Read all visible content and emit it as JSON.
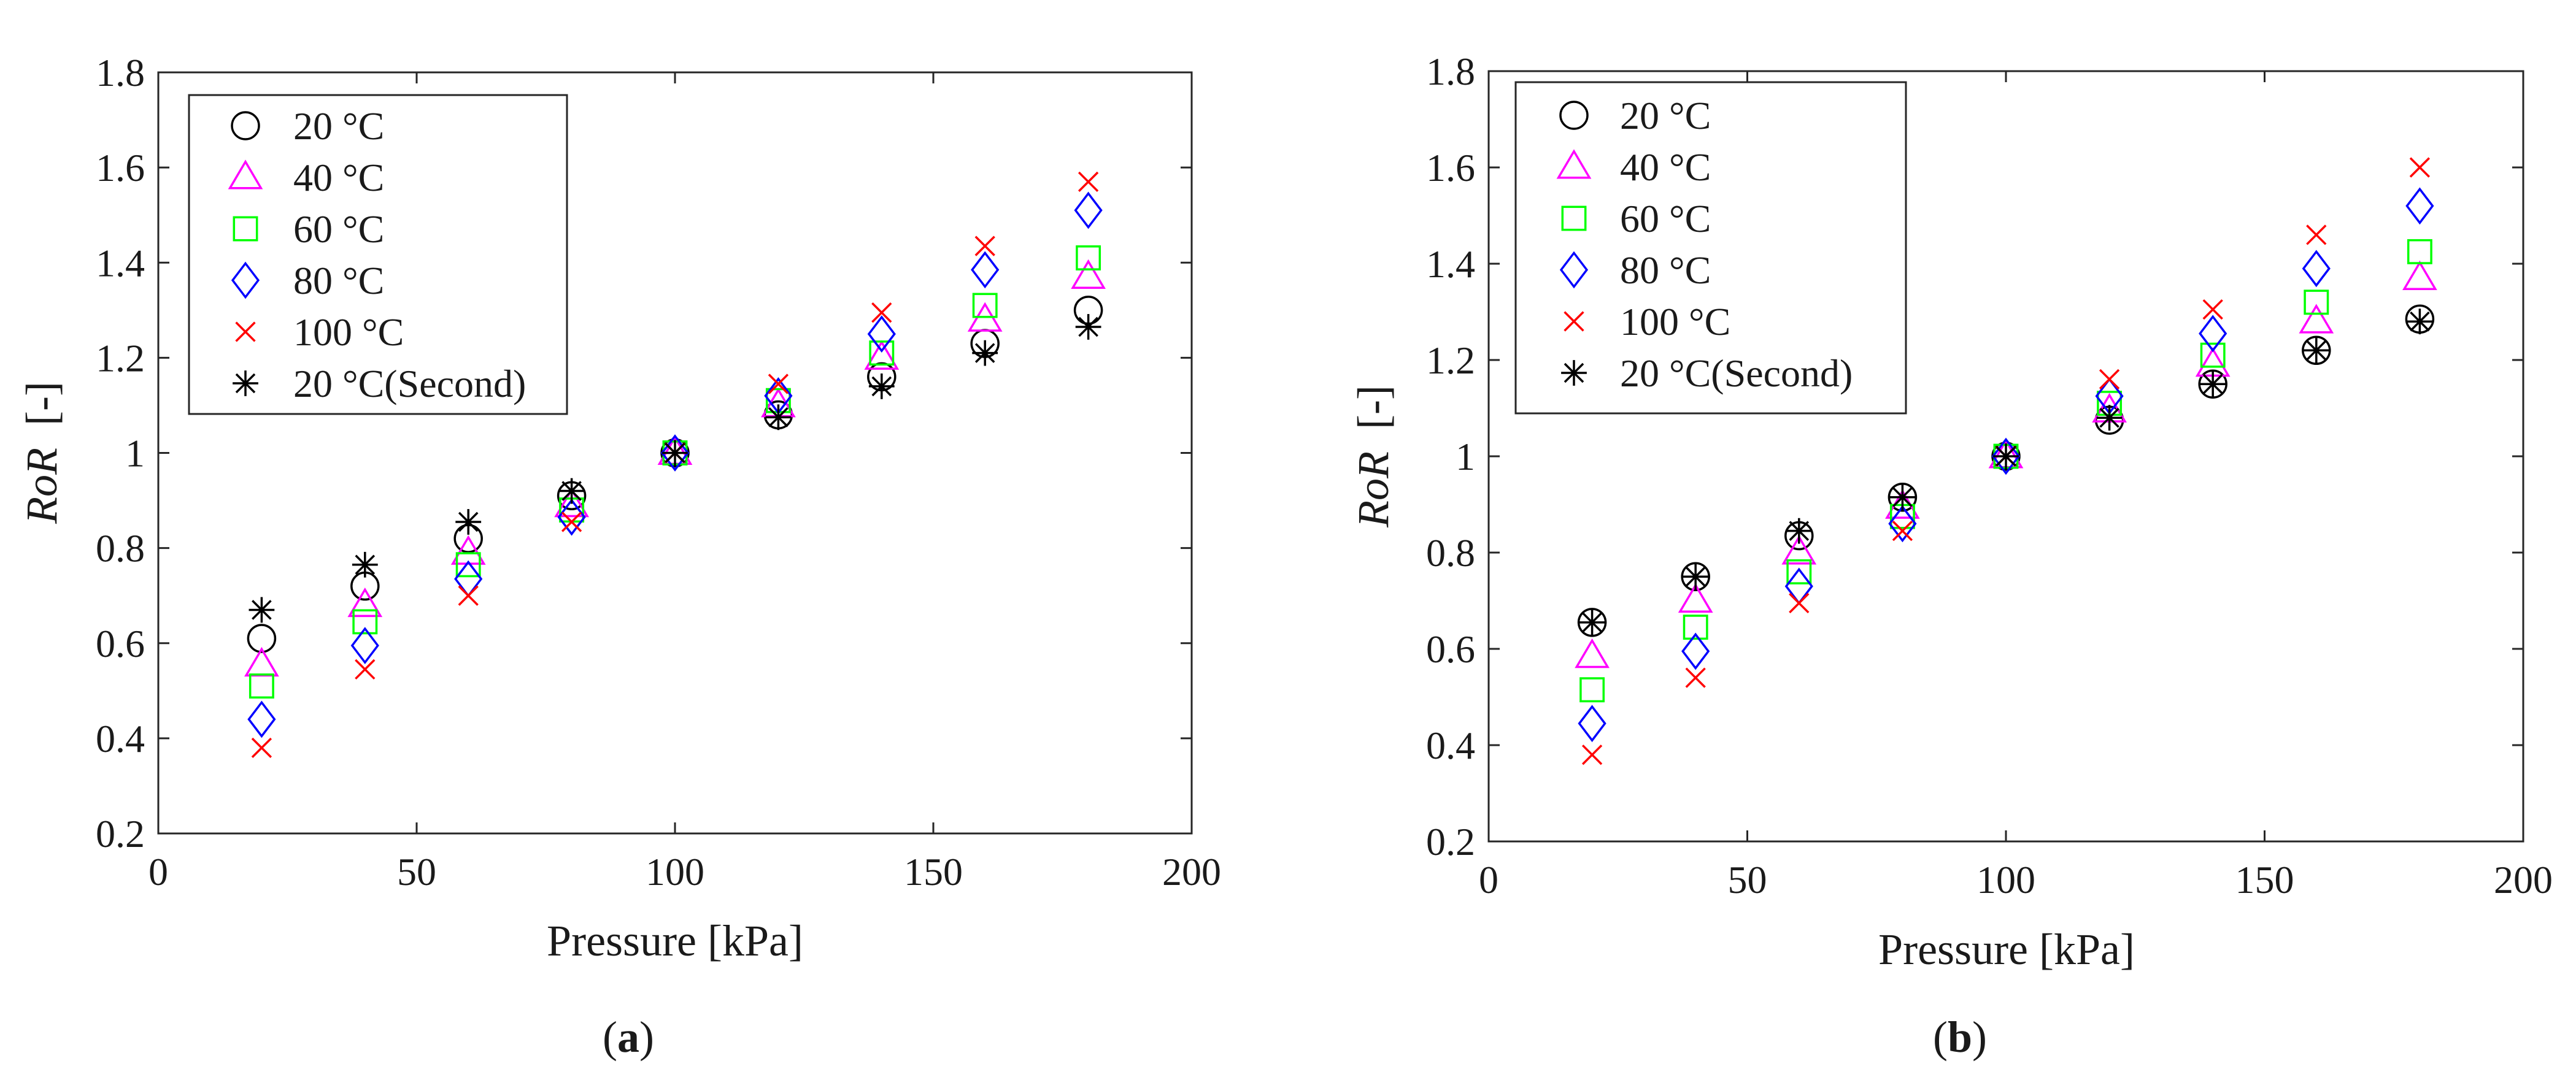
{
  "figure": {
    "panels": [
      {
        "panel_label": "a",
        "chart_data": {
          "type": "scatter",
          "xlabel": "Pressure [kPa]",
          "ylabel": "RoR",
          "ylabel_unit": "[-]",
          "xlim": [
            0,
            200
          ],
          "ylim": [
            0.2,
            1.8
          ],
          "xticks": [
            0,
            50,
            100,
            150,
            200
          ],
          "xtick_labels": [
            "0",
            "50",
            "100",
            "150",
            "200"
          ],
          "yticks": [
            0.2,
            0.4,
            0.6,
            0.8,
            1.0,
            1.2,
            1.4,
            1.6,
            1.8
          ],
          "ytick_labels": [
            "0.2",
            "0.4",
            "0.6",
            "0.8",
            "1",
            "1.2",
            "1.4",
            "1.6",
            "1.8"
          ],
          "grid": false,
          "legend_position": "top-left",
          "x": [
            20,
            40,
            60,
            80,
            100,
            120,
            140,
            160,
            180
          ],
          "series": [
            {
              "name": "20 °C",
              "marker": "circle",
              "color": "#000000",
              "values": [
                0.61,
                0.72,
                0.82,
                0.91,
                1.0,
                1.08,
                1.16,
                1.23,
                1.3
              ]
            },
            {
              "name": "40 °C",
              "marker": "triangle",
              "color": "#ff00ff",
              "values": [
                0.555,
                0.68,
                0.79,
                0.89,
                1.0,
                1.1,
                1.2,
                1.28,
                1.37
              ]
            },
            {
              "name": "60 °C",
              "marker": "square",
              "color": "#00ff00",
              "values": [
                0.51,
                0.645,
                0.765,
                0.88,
                1.0,
                1.11,
                1.21,
                1.31,
                1.41
              ]
            },
            {
              "name": "80 °C",
              "marker": "diamond",
              "color": "#0000ff",
              "values": [
                0.44,
                0.595,
                0.735,
                0.865,
                1.0,
                1.12,
                1.25,
                1.385,
                1.51
              ]
            },
            {
              "name": "100 °C",
              "marker": "x",
              "color": "#ff0000",
              "values": [
                0.38,
                0.545,
                0.7,
                0.855,
                1.0,
                1.145,
                1.295,
                1.435,
                1.57
              ]
            },
            {
              "name": "20 °C(Second)",
              "marker": "asterisk",
              "color": "#000000",
              "values": [
                0.67,
                0.765,
                0.855,
                0.92,
                1.0,
                1.075,
                1.14,
                1.21,
                1.265
              ]
            }
          ]
        }
      },
      {
        "panel_label": "b",
        "chart_data": {
          "type": "scatter",
          "xlabel": "Pressure [kPa]",
          "ylabel": "RoR",
          "ylabel_unit": "[-]",
          "xlim": [
            0,
            200
          ],
          "ylim": [
            0.2,
            1.8
          ],
          "xticks": [
            0,
            50,
            100,
            150,
            200
          ],
          "xtick_labels": [
            "0",
            "50",
            "100",
            "150",
            "200"
          ],
          "yticks": [
            0.2,
            0.4,
            0.6,
            0.8,
            1.0,
            1.2,
            1.4,
            1.6,
            1.8
          ],
          "ytick_labels": [
            "0.2",
            "0.4",
            "0.6",
            "0.8",
            "1",
            "1.2",
            "1.4",
            "1.6",
            "1.8"
          ],
          "grid": false,
          "legend_position": "top-left",
          "x": [
            20,
            40,
            60,
            80,
            100,
            120,
            140,
            160,
            180
          ],
          "series": [
            {
              "name": "20 °C",
              "marker": "circle",
              "color": "#000000",
              "values": [
                0.655,
                0.75,
                0.835,
                0.915,
                1.0,
                1.075,
                1.15,
                1.22,
                1.285
              ]
            },
            {
              "name": "40 °C",
              "marker": "triangle",
              "color": "#ff00ff",
              "values": [
                0.585,
                0.7,
                0.8,
                0.895,
                1.0,
                1.095,
                1.19,
                1.28,
                1.37
              ]
            },
            {
              "name": "60 °C",
              "marker": "square",
              "color": "#00ff00",
              "values": [
                0.515,
                0.645,
                0.76,
                0.875,
                1.0,
                1.11,
                1.21,
                1.32,
                1.425
              ]
            },
            {
              "name": "80 °C",
              "marker": "diamond",
              "color": "#0000ff",
              "values": [
                0.445,
                0.595,
                0.73,
                0.86,
                1.0,
                1.125,
                1.255,
                1.39,
                1.52
              ]
            },
            {
              "name": "100 °C",
              "marker": "x",
              "color": "#ff0000",
              "values": [
                0.38,
                0.54,
                0.695,
                0.845,
                1.0,
                1.16,
                1.305,
                1.46,
                1.6
              ]
            },
            {
              "name": "20 °C(Second)",
              "marker": "asterisk",
              "color": "#000000",
              "values": [
                0.655,
                0.75,
                0.845,
                0.915,
                1.0,
                1.08,
                1.15,
                1.22,
                1.28
              ]
            }
          ]
        }
      }
    ]
  }
}
